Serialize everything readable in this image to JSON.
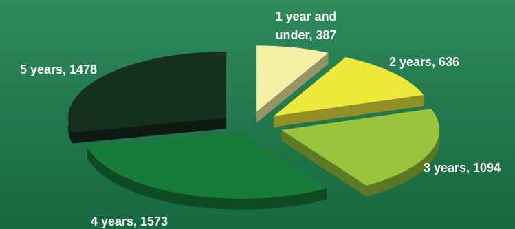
{
  "chart_data": {
    "type": "pie",
    "title": "",
    "exploded": true,
    "style": "3d",
    "slices": [
      {
        "label_lines": [
          "1 year and",
          "under, 387"
        ],
        "category": "1 year and under",
        "value": 387,
        "color": "#f3f0a4"
      },
      {
        "label_lines": [
          "2 years, 636"
        ],
        "category": "2 years",
        "value": 636,
        "color": "#ece93a"
      },
      {
        "label_lines": [
          "3 years, 1094"
        ],
        "category": "3 years",
        "value": 1094,
        "color": "#9ac43c"
      },
      {
        "label_lines": [
          "4 years, 1573"
        ],
        "category": "4 years",
        "value": 1573,
        "color": "#177c38"
      },
      {
        "label_lines": [
          "5 years, 1478"
        ],
        "category": "5 years",
        "value": 1478,
        "color": "#15301f"
      }
    ]
  }
}
